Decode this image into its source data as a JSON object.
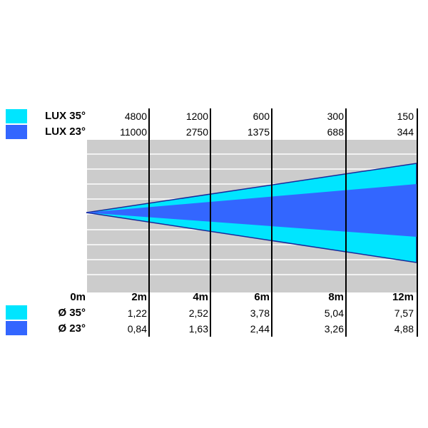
{
  "colors": {
    "beam35": "#00e5ff",
    "beam23": "#3366ff",
    "outline": "#1a2a9a",
    "grid_bg": "#cccccc",
    "grid_line": "#ffffff"
  },
  "chart_data": {
    "type": "beam-diagram",
    "distance_labels": [
      "0m",
      "2m",
      "4m",
      "6m",
      "8m",
      "12m"
    ],
    "lux_rows": [
      {
        "label": "LUX 35°",
        "color": "#00e5ff",
        "values": [
          "4800",
          "1200",
          "600",
          "300",
          "150"
        ]
      },
      {
        "label": "LUX 23°",
        "color": "#3366ff",
        "values": [
          "11000",
          "2750",
          "1375",
          "688",
          "344"
        ]
      }
    ],
    "diameter_rows": [
      {
        "label": "Ø 35°",
        "color": "#00e5ff",
        "values": [
          "1,22",
          "2,52",
          "3,78",
          "5,04",
          "7,57"
        ]
      },
      {
        "label": "Ø 23°",
        "color": "#3366ff",
        "values": [
          "0,84",
          "1,63",
          "2,44",
          "3,26",
          "4,88"
        ]
      }
    ]
  }
}
